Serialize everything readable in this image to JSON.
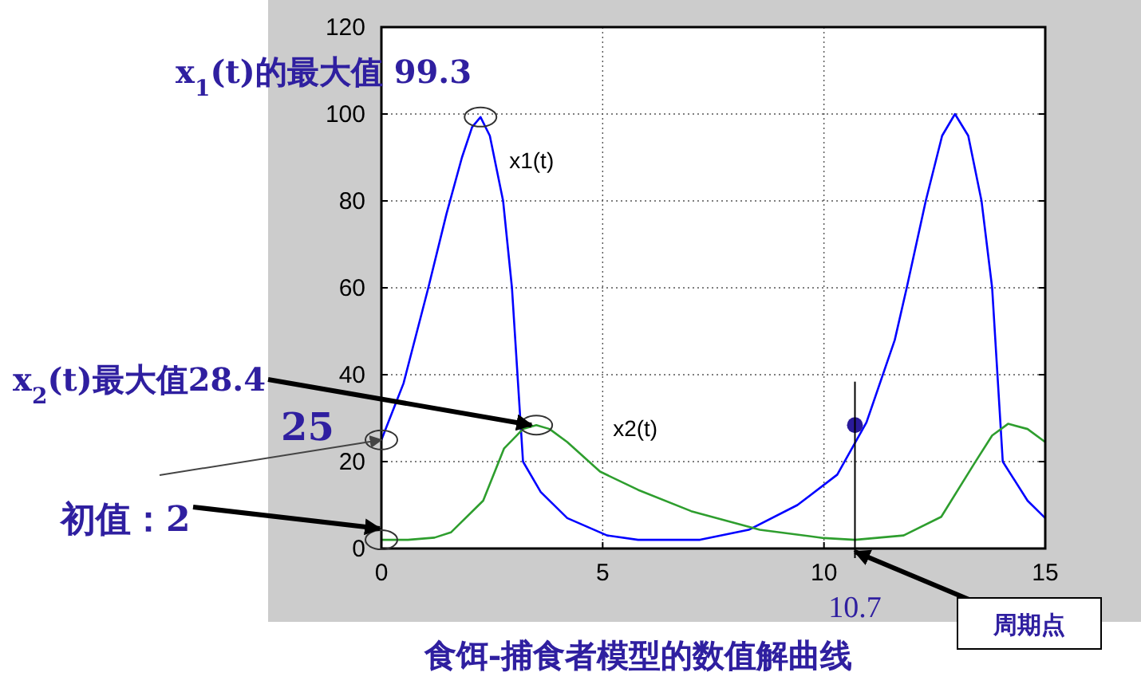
{
  "chart_data": {
    "type": "line",
    "title": "食饵-捕食者模型的数值解曲线",
    "xlim": [
      0,
      15
    ],
    "xticks": [
      0,
      5,
      10,
      15
    ],
    "ylim": [
      0,
      120
    ],
    "yticks": [
      0,
      20,
      40,
      60,
      80,
      100,
      120
    ],
    "grid": true,
    "series": [
      {
        "name": "x1(t)",
        "color": "#0000ff",
        "x": [
          0,
          0.5,
          1.06,
          1.47,
          1.82,
          2.05,
          2.24,
          2.45,
          2.75,
          2.95,
          3.2,
          3.6,
          4.2,
          5.1,
          5.8,
          6.5,
          7.2,
          8.3,
          9.4,
          10.3,
          10.96,
          11.6,
          11.87,
          12.3,
          12.67,
          12.96,
          13.26,
          13.56,
          13.8,
          14.04,
          14.6,
          15
        ],
        "values": [
          25,
          38,
          60,
          77,
          90,
          97,
          99.3,
          95,
          80,
          60,
          20,
          13,
          7,
          3,
          2,
          2,
          2,
          4.3,
          10,
          17,
          29,
          48,
          60,
          80,
          95,
          100,
          95,
          80,
          60,
          20,
          11,
          7
        ]
      },
      {
        "name": "x2(t)",
        "color": "#2e9e2e",
        "x": [
          0,
          0.6,
          1.2,
          1.57,
          2.3,
          2.77,
          3.2,
          3.5,
          3.8,
          4.2,
          4.94,
          5.8,
          7.0,
          8.55,
          10.0,
          10.7,
          11.8,
          12.65,
          13.4,
          13.8,
          14.16,
          14.6,
          15
        ],
        "values": [
          2,
          2,
          2.5,
          3.7,
          11,
          23,
          27.5,
          28.4,
          27.5,
          24.5,
          17.7,
          13.5,
          8.6,
          4.3,
          2.4,
          2,
          3,
          7.3,
          19.6,
          26,
          28.7,
          27.5,
          24.5
        ]
      },
      {
        "type": "scatter",
        "color": "#2a1a9a",
        "x": [
          10.7
        ],
        "values": [
          28.4
        ]
      }
    ],
    "ref_lines": [
      {
        "axis": "x",
        "value": 10.7,
        "label": "10.7",
        "color": "#000000"
      }
    ],
    "annotations": [
      {
        "text": "x$_{1}$(t)的最大值 99.3",
        "x": 2.24,
        "y": 99.3
      },
      {
        "text": "x$_{2}$(t)最大值28.4",
        "x": 3.5,
        "y": 28.4
      },
      {
        "text": "25",
        "x": 0,
        "y": 25
      },
      {
        "text": "初值：2",
        "x": 0,
        "y": 2
      },
      {
        "text": "周期点",
        "x": 10.7,
        "y": 0
      }
    ]
  }
}
